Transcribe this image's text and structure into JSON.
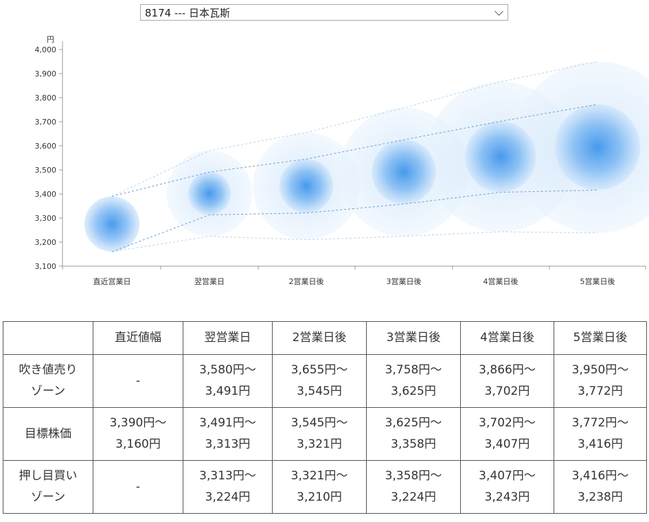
{
  "selector": {
    "value": "8174 --- 日本瓦斯"
  },
  "chart_data": {
    "type": "scatter",
    "ylabel": "円",
    "y_ticks": [
      "3,100",
      "3,200",
      "3,300",
      "3,400",
      "3,500",
      "3,600",
      "3,700",
      "3,800",
      "3,900",
      "4,000"
    ],
    "ylim": [
      3100,
      4000
    ],
    "categories": [
      "直近営業日",
      "翌営業日",
      "2営業日後",
      "3営業日後",
      "4営業日後",
      "5営業日後"
    ],
    "forecast": [
      {
        "center": 3275,
        "upper": 3390,
        "lower": 3160,
        "outer_upper": 3390,
        "outer_lower": 3160
      },
      {
        "center": 3402,
        "upper": 3491,
        "lower": 3313,
        "outer_upper": 3580,
        "outer_lower": 3224
      },
      {
        "center": 3433,
        "upper": 3545,
        "lower": 3321,
        "outer_upper": 3655,
        "outer_lower": 3210
      },
      {
        "center": 3491,
        "upper": 3625,
        "lower": 3358,
        "outer_upper": 3758,
        "outer_lower": 3224
      },
      {
        "center": 3554,
        "upper": 3702,
        "lower": 3407,
        "outer_upper": 3866,
        "outer_lower": 3243
      },
      {
        "center": 3594,
        "upper": 3772,
        "lower": 3416,
        "outer_upper": 3950,
        "outer_lower": 3238
      }
    ],
    "colors": {
      "inner": "#5aa9f0",
      "outer": "#dbeafb",
      "line_dark": "#6a9fd0",
      "line_light": "#b9d3ea"
    }
  },
  "table": {
    "header": [
      "",
      "直近値幅",
      "翌営業日",
      "2営業日後",
      "3営業日後",
      "4営業日後",
      "5営業日後"
    ],
    "rows": [
      {
        "label": [
          "吹き値売り",
          "ゾーン"
        ],
        "cells": [
          [
            "-"
          ],
          [
            "3,580円～",
            "3,491円"
          ],
          [
            "3,655円～",
            "3,545円"
          ],
          [
            "3,758円～",
            "3,625円"
          ],
          [
            "3,866円～",
            "3,702円"
          ],
          [
            "3,950円～",
            "3,772円"
          ]
        ]
      },
      {
        "label": [
          "目標株価"
        ],
        "cells": [
          [
            "3,390円～",
            "3,160円"
          ],
          [
            "3,491円～",
            "3,313円"
          ],
          [
            "3,545円～",
            "3,321円"
          ],
          [
            "3,625円～",
            "3,358円"
          ],
          [
            "3,702円～",
            "3,407円"
          ],
          [
            "3,772円～",
            "3,416円"
          ]
        ]
      },
      {
        "label": [
          "押し目買い",
          "ゾーン"
        ],
        "cells": [
          [
            "-"
          ],
          [
            "3,313円～",
            "3,224円"
          ],
          [
            "3,321円～",
            "3,210円"
          ],
          [
            "3,358円～",
            "3,224円"
          ],
          [
            "3,407円～",
            "3,243円"
          ],
          [
            "3,416円～",
            "3,238円"
          ]
        ]
      }
    ]
  }
}
